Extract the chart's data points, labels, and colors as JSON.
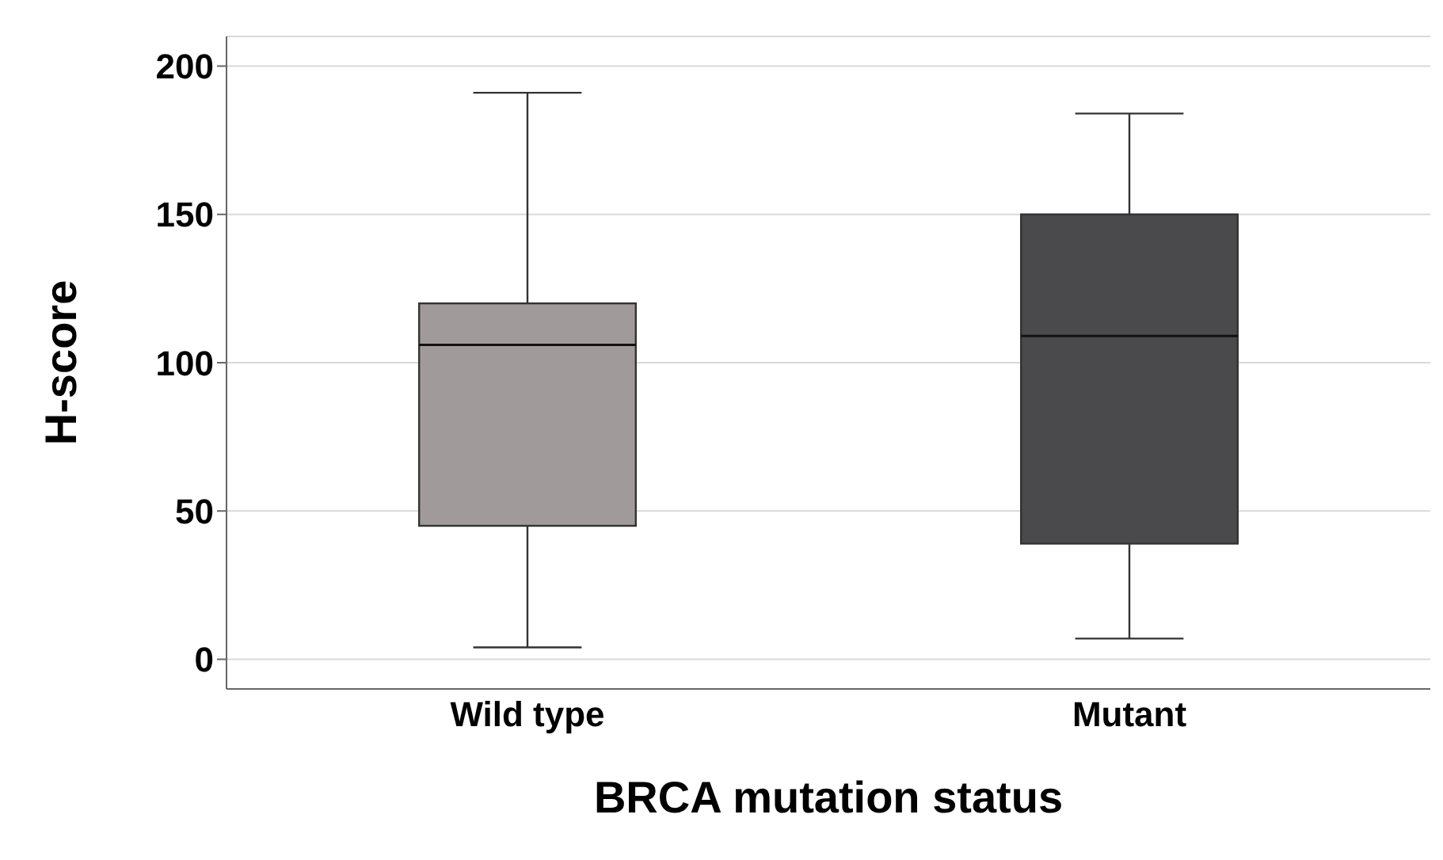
{
  "chart_data": {
    "type": "box",
    "xlabel": "BRCA mutation status",
    "ylabel": "H-score",
    "categories": [
      "Wild type",
      "Mutant"
    ],
    "boxes": [
      {
        "low": 4,
        "q1": 45,
        "median": 106,
        "q3": 120,
        "high": 191
      },
      {
        "low": 7,
        "q1": 39,
        "median": 109,
        "q3": 150,
        "high": 184
      }
    ],
    "colors": [
      "#a09b9a",
      "#4a4a4c"
    ],
    "ylim": [
      -10,
      210
    ],
    "yticks": [
      0,
      50,
      100,
      150,
      200
    ],
    "grid": "y"
  }
}
